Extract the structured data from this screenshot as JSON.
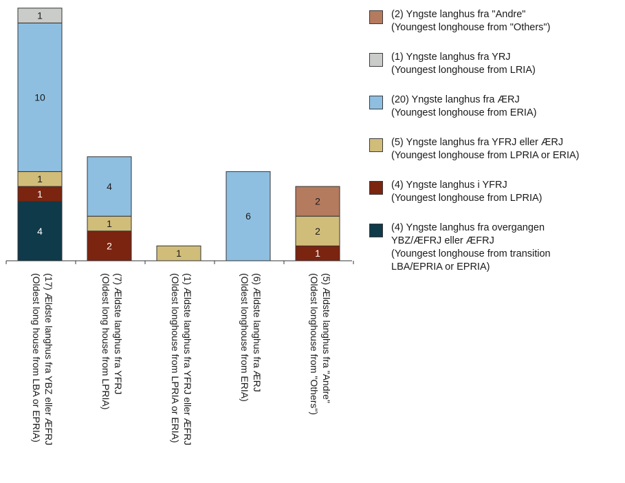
{
  "chart_data": {
    "type": "bar",
    "stacked": true,
    "ylim": [
      0,
      17
    ],
    "categories": [
      "(17) Ældste langhus fra YBZ eller ÆFRJ\n(Oldest long house from LBA or EPRIA)",
      "(7) Ældste langhus fra YFRJ\n(Oldest long house from LPRIA)",
      "(1) Ældste langhus fra YFRJ eller ÆFRJ\n(Oldest longhouse from LPRIA or ERIA)",
      "(6) Ældste langhus fra ÆRJ\n(Oldest longhouse from ERIA)",
      "(5) Ældste langhus fra \"Andre\"\n(Oldest longhouse from \"Others\")"
    ],
    "series": [
      {
        "name": "(4) Yngste langhus fra overgangen\nYBZ/ÆFRJ eller ÆFRJ\n(Youngest longhouse from transition\nLBA/EPRIA or EPRIA)",
        "color": "#0f3a4a",
        "values": [
          4,
          0,
          0,
          0,
          0
        ]
      },
      {
        "name": "(4) Yngste langhus i YFRJ\n(Youngest longhouse from LPRIA)",
        "color": "#7b2410",
        "values": [
          1,
          2,
          0,
          0,
          1
        ]
      },
      {
        "name": "(5) Yngste langhus fra YFRJ eller ÆRJ\n(Youngest longhouse from LPRIA or ERIA)",
        "color": "#d1bd7a",
        "values": [
          1,
          1,
          1,
          0,
          2
        ]
      },
      {
        "name": "(20) Yngste langhus fra ÆRJ\n(Youngest longhouse from ERIA)",
        "color": "#8fbfe0",
        "values": [
          10,
          4,
          0,
          6,
          0
        ]
      },
      {
        "name": "(1) Yngste langhus fra YRJ\n(Youngest longhouse from LRIA)",
        "color": "#c9ccc8",
        "values": [
          1,
          0,
          0,
          0,
          0
        ]
      },
      {
        "name": "(2) Yngste langhus fra \"Andre\"\n(Youngest longhouse from \"Others\")",
        "color": "#b57b5f",
        "values": [
          0,
          0,
          0,
          0,
          2
        ]
      }
    ],
    "label_colors": {
      "#0f3a4a": "#ffffff",
      "#7b2410": "#ffffff",
      "#d1bd7a": "#1a1a1a",
      "#8fbfe0": "#1a1a1a",
      "#c9ccc8": "#1a1a1a",
      "#b57b5f": "#1a1a1a"
    },
    "legend_order": [
      5,
      4,
      3,
      2,
      1,
      0
    ],
    "legend_position": "right",
    "grid": false
  }
}
